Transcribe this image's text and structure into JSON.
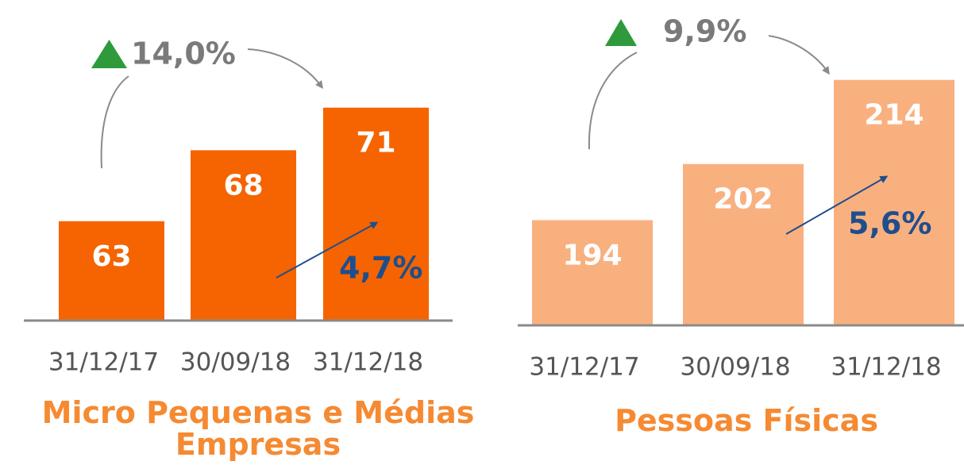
{
  "chart_data": [
    {
      "type": "bar",
      "title": "Micro Pequenas e Médias Empresas",
      "categories": [
        "31/12/17",
        "30/09/18",
        "31/12/18"
      ],
      "values": [
        63,
        68,
        71
      ],
      "color": "#f56400",
      "ylim": [
        56,
        74
      ],
      "annotations": [
        "14,0%",
        "4,7%"
      ]
    },
    {
      "type": "bar",
      "title": "Pessoas Físicas",
      "categories": [
        "31/12/17",
        "30/09/18",
        "31/12/18"
      ],
      "values": [
        194,
        202,
        214
      ],
      "color": "#f9b07f",
      "ylim": [
        179,
        222
      ],
      "annotations": [
        "9,9%",
        "5,6%"
      ]
    }
  ]
}
